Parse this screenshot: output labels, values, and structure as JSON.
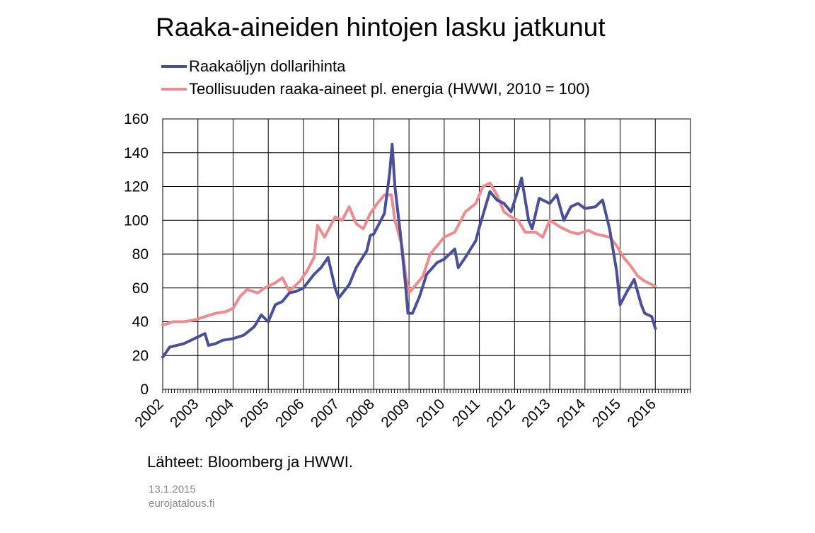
{
  "title": "Raaka-aineiden hintojen lasku jatkunut",
  "legend": [
    {
      "label": "Raakaöljyn dollarihinta",
      "color": "#4a4f9a"
    },
    {
      "label": "Teollisuuden raaka-aineet pl. energia (HWWI, 2010 = 100)",
      "color": "#ef8a8e"
    }
  ],
  "source": "Lähteet: Bloomberg ja HWWI.",
  "footer": {
    "date": "13.1.2015",
    "site": "eurojatalous.fi"
  },
  "chart_data": {
    "type": "line",
    "title": "Raaka-aineiden hintojen lasku jatkunut",
    "xlabel": "",
    "ylabel": "",
    "ylim": [
      0,
      160
    ],
    "y_ticks": [
      0,
      20,
      40,
      60,
      80,
      100,
      120,
      140,
      160
    ],
    "xlim": [
      2002,
      2017
    ],
    "x_ticks": [
      "2002",
      "2003",
      "2004",
      "2005",
      "2006",
      "2007",
      "2008",
      "2009",
      "2010",
      "2011",
      "2012",
      "2013",
      "2014",
      "2015",
      "2016"
    ],
    "grid": true,
    "legend_position": "top-left",
    "series": [
      {
        "name": "Raakaöljyn dollarihinta",
        "color": "#4a4f9a",
        "x": [
          2002.0,
          2002.2,
          2002.4,
          2002.6,
          2002.8,
          2003.0,
          2003.2,
          2003.3,
          2003.5,
          2003.7,
          2004.0,
          2004.3,
          2004.6,
          2004.8,
          2005.0,
          2005.2,
          2005.4,
          2005.6,
          2005.8,
          2006.0,
          2006.3,
          2006.5,
          2006.7,
          2006.9,
          2007.0,
          2007.3,
          2007.5,
          2007.8,
          2007.9,
          2008.0,
          2008.3,
          2008.45,
          2008.52,
          2008.6,
          2008.75,
          2008.9,
          2008.97,
          2009.1,
          2009.3,
          2009.5,
          2009.8,
          2010.0,
          2010.3,
          2010.4,
          2010.6,
          2010.9,
          2011.0,
          2011.3,
          2011.5,
          2011.7,
          2011.9,
          2012.1,
          2012.2,
          2012.4,
          2012.5,
          2012.7,
          2013.0,
          2013.2,
          2013.4,
          2013.6,
          2013.8,
          2014.0,
          2014.3,
          2014.5,
          2014.7,
          2014.9,
          2015.0,
          2015.2,
          2015.4,
          2015.6,
          2015.7,
          2015.9,
          2016.0
        ],
        "y": [
          19,
          25,
          26,
          27,
          29,
          31,
          33,
          26,
          27,
          29,
          30,
          32,
          37,
          44,
          40,
          50,
          52,
          57,
          58,
          60,
          68,
          72,
          78,
          60,
          54,
          62,
          72,
          82,
          91,
          92,
          104,
          128,
          145,
          120,
          93,
          62,
          45,
          45,
          55,
          68,
          75,
          77,
          83,
          72,
          78,
          88,
          96,
          117,
          112,
          110,
          105,
          118,
          125,
          100,
          95,
          113,
          110,
          115,
          100,
          108,
          110,
          107,
          108,
          112,
          95,
          70,
          50,
          58,
          65,
          50,
          45,
          43,
          36
        ]
      },
      {
        "name": "Teollisuuden raaka-aineet pl. energia (HWWI, 2010 = 100)",
        "color": "#ef8a8e",
        "x": [
          2002.0,
          2002.3,
          2002.6,
          2002.9,
          2003.2,
          2003.5,
          2003.8,
          2004.0,
          2004.2,
          2004.4,
          2004.7,
          2004.9,
          2005.2,
          2005.4,
          2005.6,
          2005.9,
          2006.1,
          2006.3,
          2006.4,
          2006.6,
          2006.9,
          2007.1,
          2007.3,
          2007.5,
          2007.7,
          2007.9,
          2008.1,
          2008.3,
          2008.5,
          2008.6,
          2008.8,
          2008.9,
          2009.0,
          2009.2,
          2009.4,
          2009.6,
          2009.8,
          2010.0,
          2010.3,
          2010.6,
          2010.9,
          2011.1,
          2011.3,
          2011.5,
          2011.7,
          2011.9,
          2012.1,
          2012.3,
          2012.6,
          2012.8,
          2013.0,
          2013.3,
          2013.6,
          2013.8,
          2014.1,
          2014.3,
          2014.5,
          2014.7,
          2014.9,
          2015.1,
          2015.3,
          2015.5,
          2015.7,
          2015.9,
          2016.0
        ],
        "y": [
          38,
          40,
          40,
          41,
          43,
          45,
          46,
          48,
          55,
          59,
          57,
          60,
          63,
          66,
          58,
          64,
          70,
          78,
          97,
          90,
          102,
          100,
          108,
          98,
          95,
          104,
          110,
          115,
          115,
          100,
          85,
          68,
          57,
          62,
          67,
          80,
          85,
          90,
          93,
          105,
          110,
          120,
          122,
          115,
          105,
          102,
          100,
          93,
          93,
          90,
          100,
          96,
          93,
          92,
          94,
          92,
          91,
          90,
          85,
          78,
          73,
          67,
          64,
          62,
          61
        ]
      }
    ]
  }
}
